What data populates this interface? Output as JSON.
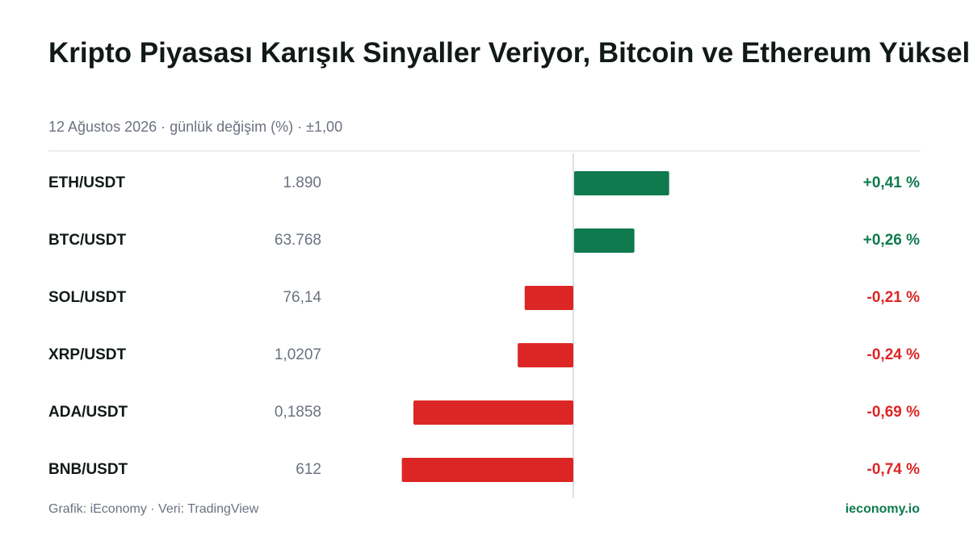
{
  "chart_data": {
    "type": "diverging-bar",
    "title": "Kripto Piyasası Karışık Sinyaller Veriyor, Bitcoin ve Ethereum Yükselişte",
    "subtitle": "12 Ağustos 2026 · günlük değişim (%) · ±1,00",
    "categories": [
      "ETH/USDT",
      "BTC/USDT",
      "SOL/USDT",
      "XRP/USDT",
      "ADA/USDT",
      "BNB/USDT"
    ],
    "prices": [
      "1.890",
      "63.768",
      "76,14",
      "1,0207",
      "0,1858",
      "612"
    ],
    "values": [
      0.41,
      0.26,
      -0.21,
      -0.24,
      -0.69,
      -0.74
    ],
    "value_labels": [
      "+0,41 %",
      "+0,26 %",
      "-0,21 %",
      "-0,24 %",
      "-0,69 %",
      "-0,74 %"
    ],
    "xlim": [
      -1,
      1
    ],
    "colors": {
      "positive": "#0e7a4e",
      "negative": "#dc2626"
    },
    "source": "Grafik: iEconomy · Veri: TradingView",
    "brand": "ieconomy.io"
  }
}
